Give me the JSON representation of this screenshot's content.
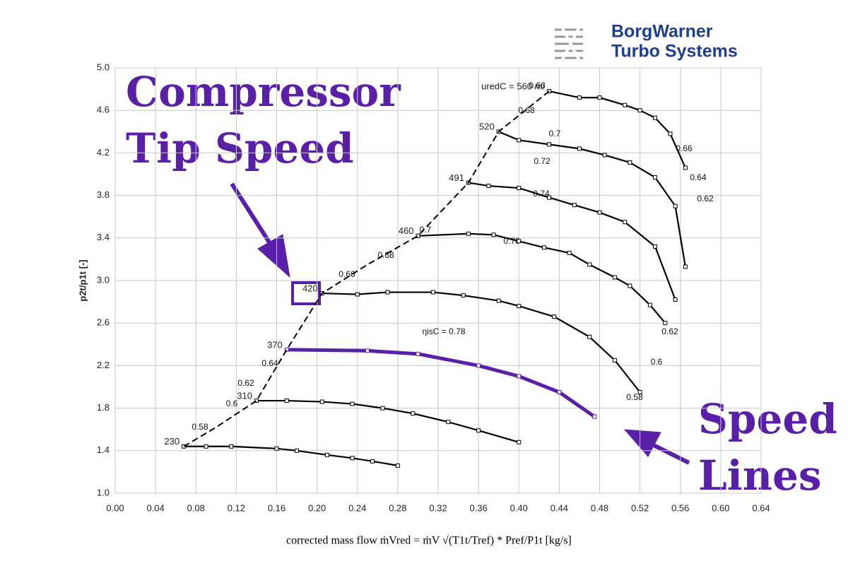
{
  "logo": [
    "BorgWarner",
    "Turbo Systems"
  ],
  "chart_data": {
    "type": "line",
    "x_label": "corrected mass flow   ṁVred = ṁV √(T1t/Tref) * Pref/P1t  [kg/s]",
    "y_label": "p2t/p1t [-]",
    "annotations": [
      "Compressor",
      "Tip Speed",
      "Speed",
      "Lines"
    ],
    "efficiency_labels": [
      "0.66",
      "0.68",
      "0.7",
      "0.72",
      "0.74",
      "0.76",
      "0.7",
      "0.68",
      "0.66",
      "0.64",
      "0.62",
      "0.6",
      "0.58",
      "ηisC = 0.78",
      "0.66",
      "0.64",
      "0.62",
      "0.62",
      "0.6",
      "0.58"
    ],
    "xlim": [
      0,
      0.64
    ],
    "ylim": [
      1,
      5
    ],
    "grid": true,
    "xticks": [
      {
        "value": 0,
        "label": "0.00"
      },
      0.04,
      0.08,
      0.12,
      0.16,
      {
        "value": 0.2,
        "label": "0.20"
      },
      0.24,
      0.28,
      0.32,
      0.36,
      {
        "value": 0.4,
        "label": "0.40"
      },
      0.44,
      0.48,
      0.52,
      0.56,
      {
        "value": 0.6,
        "label": "0.60"
      },
      0.64
    ],
    "yticks": [
      {
        "value": 1,
        "label": "1.0"
      },
      1.4,
      1.8,
      2.2,
      2.6,
      {
        "value": 3,
        "label": "3.0"
      },
      3.4,
      3.8,
      4.2,
      4.6,
      {
        "value": 5,
        "label": "5.0"
      }
    ],
    "series": [
      {
        "name": "230",
        "color": "#000000",
        "x": [
          0.068,
          0.09,
          0.115,
          0.16,
          0.18,
          0.21,
          0.235,
          0.255,
          0.28
        ],
        "values": [
          1.44,
          1.44,
          1.44,
          1.42,
          1.4,
          1.36,
          1.33,
          1.3,
          1.26
        ]
      },
      {
        "name": "310",
        "color": "#000000",
        "x": [
          0.14,
          0.17,
          0.205,
          0.235,
          0.265,
          0.295,
          0.33,
          0.36,
          0.4
        ],
        "values": [
          1.87,
          1.87,
          1.86,
          1.84,
          1.8,
          1.75,
          1.67,
          1.59,
          1.48
        ]
      },
      {
        "name": "370",
        "color": "#5a1fa8",
        "x": [
          0.17,
          0.25,
          0.3,
          0.36,
          0.4,
          0.44,
          0.475
        ],
        "values": [
          2.35,
          2.34,
          2.31,
          2.2,
          2.1,
          1.95,
          1.72
        ]
      },
      {
        "name": "420",
        "color": "#000000",
        "x": [
          0.205,
          0.24,
          0.27,
          0.315,
          0.345,
          0.38,
          0.4,
          0.435,
          0.47,
          0.495,
          0.52
        ],
        "values": [
          2.88,
          2.87,
          2.89,
          2.89,
          2.86,
          2.81,
          2.76,
          2.66,
          2.47,
          2.25,
          1.95
        ]
      },
      {
        "name": "460",
        "color": "#000000",
        "x": [
          0.3,
          0.35,
          0.375,
          0.4,
          0.425,
          0.45,
          0.47,
          0.495,
          0.51,
          0.53,
          0.545
        ],
        "values": [
          3.42,
          3.44,
          3.43,
          3.37,
          3.31,
          3.26,
          3.15,
          3.03,
          2.95,
          2.77,
          2.6
        ]
      },
      {
        "name": "491",
        "color": "#000000",
        "x": [
          0.35,
          0.37,
          0.4,
          0.43,
          0.455,
          0.48,
          0.505,
          0.535,
          0.555
        ],
        "values": [
          3.92,
          3.89,
          3.87,
          3.78,
          3.71,
          3.64,
          3.55,
          3.32,
          2.82
        ]
      },
      {
        "name": "520",
        "color": "#000000",
        "x": [
          0.38,
          0.4,
          0.43,
          0.46,
          0.485,
          0.51,
          0.535,
          0.555,
          0.565
        ],
        "values": [
          4.4,
          4.32,
          4.28,
          4.24,
          4.18,
          4.11,
          3.97,
          3.7,
          3.13
        ]
      },
      {
        "name": "uredC = 560 m/",
        "color": "#000000",
        "x": [
          0.43,
          0.46,
          0.48,
          0.505,
          0.52,
          0.535,
          0.55,
          0.565
        ],
        "values": [
          4.78,
          4.72,
          4.72,
          4.65,
          4.6,
          4.53,
          4.38,
          4.06
        ]
      },
      {
        "color": "#000000",
        "dashed": true,
        "x": [
          0.068,
          0.1,
          0.14,
          0.17,
          0.205,
          0.25,
          0.3,
          0.35,
          0.38,
          0.43
        ],
        "values": [
          1.44,
          1.62,
          1.87,
          2.35,
          2.88,
          3.15,
          3.42,
          3.92,
          4.4,
          4.78
        ]
      }
    ]
  }
}
